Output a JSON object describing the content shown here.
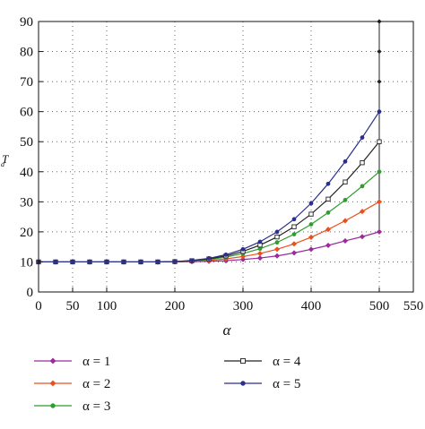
{
  "chart_data": {
    "type": "line",
    "xlabel": "α",
    "ylabel": "T_a",
    "xlim": [
      0,
      550
    ],
    "ylim": [
      0,
      90
    ],
    "x_ticks": [
      0,
      50,
      100,
      200,
      300,
      400,
      500,
      550
    ],
    "x_tick_labels": [
      "0",
      "50",
      "100",
      "200",
      "300",
      "400",
      "500",
      "550"
    ],
    "y_ticks": [
      0,
      10,
      20,
      30,
      40,
      50,
      60,
      70,
      80,
      90
    ],
    "y_tick_labels": [
      "0",
      "10",
      "20",
      "30",
      "40",
      "50",
      "60",
      "70",
      "80",
      "90"
    ],
    "grid": "dotted",
    "legend_position": "bottom",
    "x": [
      0,
      25,
      50,
      75,
      100,
      125,
      150,
      175,
      200,
      225,
      250,
      275,
      300,
      325,
      350,
      375,
      400,
      425,
      450,
      475,
      500
    ],
    "series": [
      {
        "name": "α = 1",
        "color": "#9b2a9b",
        "marker": "diamond",
        "values": [
          10,
          10,
          10,
          10,
          10,
          10,
          10,
          10,
          10,
          10.1,
          10.2,
          10.4,
          10.8,
          11.3,
          12,
          13,
          14.2,
          15.5,
          17,
          18.4,
          20
        ]
      },
      {
        "name": "α = 2",
        "color": "#e8501e",
        "marker": "diamond",
        "values": [
          10,
          10,
          10,
          10,
          10,
          10,
          10,
          10,
          10.1,
          10.2,
          10.5,
          11,
          11.8,
          12.8,
          14.2,
          16,
          18.2,
          20.8,
          23.7,
          26.8,
          30
        ]
      },
      {
        "name": "α = 3",
        "color": "#2e9e2e",
        "marker": "circle",
        "values": [
          10,
          10,
          10,
          10,
          10,
          10,
          10,
          10,
          10.1,
          10.3,
          10.8,
          11.6,
          12.8,
          14.4,
          16.5,
          19.2,
          22.5,
          26.4,
          30.6,
          35.2,
          40
        ]
      },
      {
        "name": "α = 4",
        "color": "#222222",
        "marker": "square",
        "values": [
          10,
          10,
          10,
          10,
          10,
          10,
          10,
          10,
          10.1,
          10.4,
          11,
          12,
          13.5,
          15.6,
          18.3,
          21.7,
          25.9,
          30.9,
          36.6,
          43,
          50
        ]
      },
      {
        "name": "α = 5",
        "color": "#2b2f8f",
        "marker": "circle",
        "values": [
          10,
          10,
          10,
          10,
          10,
          10,
          10,
          10,
          10.1,
          10.5,
          11.2,
          12.4,
          14.2,
          16.7,
          20,
          24.2,
          29.5,
          36,
          43.4,
          51.4,
          60
        ]
      }
    ],
    "vertical_line": {
      "x": 500,
      "from": 20,
      "to": 90,
      "color": "#222222",
      "marker_values": [
        20,
        30,
        40,
        50,
        60,
        70,
        80,
        90
      ]
    }
  }
}
